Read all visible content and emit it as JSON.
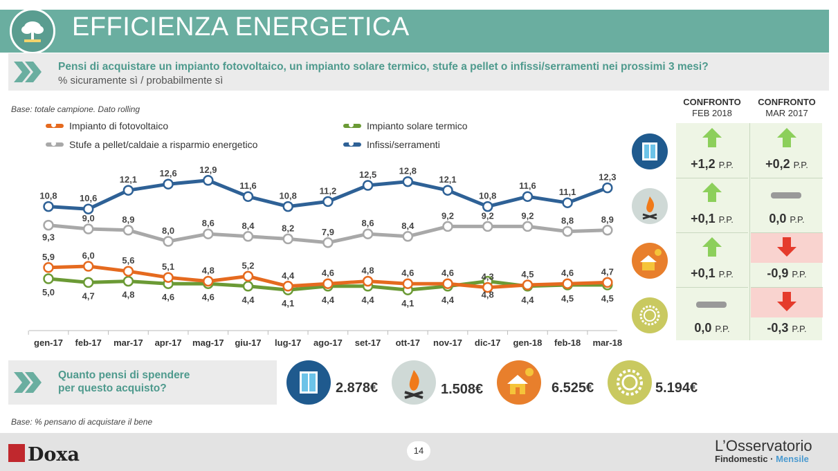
{
  "header": {
    "title": "EFFICIENZA ENERGETICA",
    "question": "Pensi di acquistare un impianto fotovoltaico, un impianto solare termico, stufe a pellet o infissi/serramenti nei prossimi 3 mesi?",
    "subtitle": "% sicuramente sì / probabilmente sì"
  },
  "base_note": "Base: totale campione. Dato rolling",
  "base_note_2": "Base: % pensano di acquistare il bene",
  "chart_data": {
    "type": "line",
    "x": [
      "gen-17",
      "feb-17",
      "mar-17",
      "apr-17",
      "mag-17",
      "giu-17",
      "lug-17",
      "ago-17",
      "set-17",
      "ott-17",
      "nov-17",
      "dic-17",
      "gen-18",
      "feb-18",
      "mar-18"
    ],
    "ylim": [
      3.5,
      13.5
    ],
    "grid": false,
    "legend_position": "top",
    "series": [
      {
        "name": "Infissi/serramenti",
        "color": "#2e6196",
        "label_pos": "above",
        "values": [
          10.8,
          10.6,
          12.1,
          12.6,
          12.9,
          11.6,
          10.8,
          11.2,
          12.5,
          12.8,
          12.1,
          10.8,
          11.6,
          11.1,
          12.3
        ],
        "labels": [
          "10,8",
          "10,6",
          "12,1",
          "12,6",
          "12,9",
          "11,6",
          "10,8",
          "11,2",
          "12,5",
          "12,8",
          "12,1",
          "10,8",
          "11,6",
          "11,1",
          "12,3"
        ]
      },
      {
        "name": "Stufe a pellet/caldaie a risparmio energetico",
        "color": "#a8a8a8",
        "label_pos": "mixed",
        "values": [
          9.3,
          9.0,
          8.9,
          8.0,
          8.6,
          8.4,
          8.2,
          7.9,
          8.6,
          8.4,
          9.2,
          9.2,
          9.2,
          8.8,
          8.9
        ],
        "labels": [
          "9,3",
          "9,0",
          "8,9",
          "8,0",
          "8,6",
          "8,4",
          "8,2",
          "7,9",
          "8,6",
          "8,4",
          "9,2",
          "9,2",
          "9,2",
          "8,8",
          "8,9"
        ]
      },
      {
        "name": "Impianto di fotovoltaico",
        "color": "#e56a1f",
        "label_pos": "above",
        "values": [
          5.9,
          6.0,
          5.6,
          5.1,
          4.8,
          5.2,
          4.4,
          4.6,
          4.8,
          4.6,
          4.6,
          4.3,
          4.5,
          4.6,
          4.7
        ],
        "labels": [
          "5,9",
          "6,0",
          "5,6",
          "5,1",
          "4,8",
          "5,2",
          "4,4",
          "4,6",
          "4,8",
          "4,6",
          "4,6",
          "4,3",
          "4,5",
          "4,6",
          "4,7"
        ]
      },
      {
        "name": "Impianto solare termico",
        "color": "#6b9a35",
        "label_pos": "below",
        "values": [
          5.0,
          4.7,
          4.8,
          4.6,
          4.6,
          4.4,
          4.1,
          4.4,
          4.4,
          4.1,
          4.4,
          4.8,
          4.4,
          4.5,
          4.5
        ],
        "labels": [
          "5,0",
          "4,7",
          "4,8",
          "4,6",
          "4,6",
          "4,4",
          "4,1",
          "4,4",
          "4,4",
          "4,1",
          "4,4",
          "4,8",
          "4,4",
          "4,5",
          "4,5"
        ]
      }
    ]
  },
  "legend": [
    {
      "label": "Impianto di fotovoltaico",
      "color": "#e56a1f"
    },
    {
      "label": "Impianto solare termico",
      "color": "#6b9a35"
    },
    {
      "label": "Stufe a pellet/caldaie a risparmio energetico",
      "color": "#a8a8a8"
    },
    {
      "label": "Infissi/serramenti",
      "color": "#2e6196"
    }
  ],
  "comparison": {
    "col1_title": "CONFRONTO",
    "col1_sub": "FEB 2018",
    "col2_title": "CONFRONTO",
    "col2_sub": "MAR 2017",
    "unit": "P.P.",
    "rows": [
      {
        "icon": "window-icon",
        "c1": {
          "value": "+1,2",
          "trend": "up"
        },
        "c2": {
          "value": "+0,2",
          "trend": "up"
        }
      },
      {
        "icon": "fire-icon",
        "c1": {
          "value": "+0,1",
          "trend": "up"
        },
        "c2": {
          "value": "0,0",
          "trend": "flat"
        }
      },
      {
        "icon": "house-sun-icon",
        "c1": {
          "value": "+0,1",
          "trend": "up"
        },
        "c2": {
          "value": "-0,9",
          "trend": "down"
        }
      },
      {
        "icon": "solar-icon",
        "c1": {
          "value": "0,0",
          "trend": "flat"
        },
        "c2": {
          "value": "-0,3",
          "trend": "down"
        }
      }
    ]
  },
  "spend": {
    "question_line1": "Quanto pensi di spendere",
    "question_line2": "per questo acquisto?",
    "items": [
      {
        "icon": "window-icon",
        "value": "2.878€"
      },
      {
        "icon": "fire-icon",
        "value": "1.508€"
      },
      {
        "icon": "house-sun-icon",
        "value": "6.525€"
      },
      {
        "icon": "solar-icon",
        "value": "5.194€"
      }
    ]
  },
  "footer": {
    "page_number": "14",
    "brand": "Doxa",
    "partner_line1": "L’Osservatorio",
    "partner_line2a": "Findomestic · ",
    "partner_line2b": "Mensile"
  },
  "colors": {
    "header": "#6aaea0",
    "accent_text": "#4e9a8d",
    "up": "#8ccf5b",
    "down": "#e53b2c",
    "down_bg": "#f9d3cf"
  }
}
